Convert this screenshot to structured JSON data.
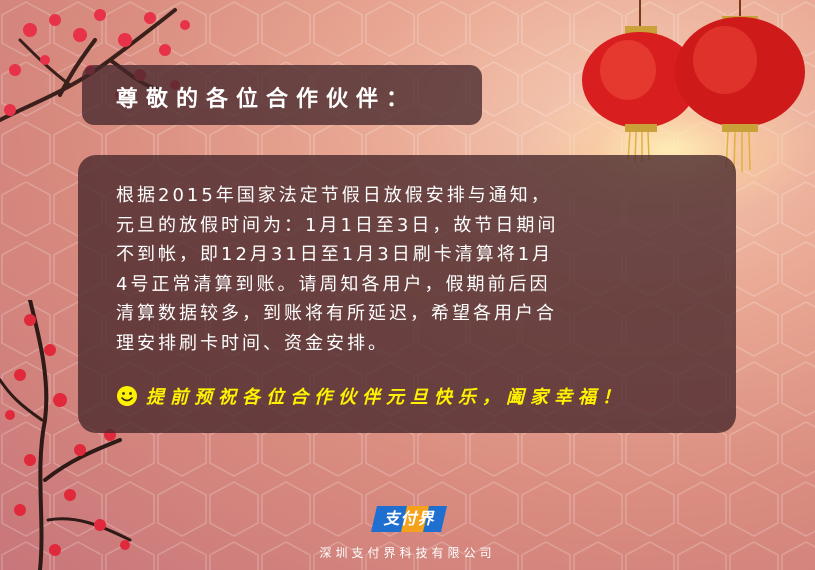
{
  "title": "尊敬的各位合作伙伴：",
  "body_lines": [
    "根据2015年国家法定节假日放假安排与通知，",
    "元旦的放假时间为：1月1日至3日，故节日期间",
    "不到帐，即12月31日至1月3日刷卡清算将1月",
    "4号正常清算到账。请周知各用户，假期前后因",
    "清算数据较多，到账将有所延迟，希望各用户合",
    "理安排刷卡时间、资金安排。"
  ],
  "greeting": "提前预祝各位合作伙伴元旦快乐，阖家幸福！",
  "logo": {
    "text": "支付界"
  },
  "company": "深圳支付界科技有限公司",
  "colors": {
    "accent_yellow": "#fff200",
    "panel": "#46262a",
    "lantern_red": "#d81e1e",
    "blossom": "#e8324a"
  },
  "icons": [
    "smile-icon",
    "lantern-icon",
    "plum-blossom-branch",
    "logo-icon"
  ]
}
